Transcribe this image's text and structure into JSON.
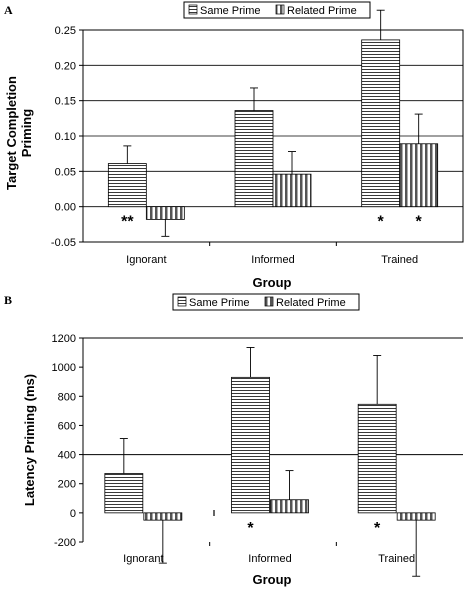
{
  "chart_data": [
    {
      "panel": "A",
      "type": "bar",
      "categories": [
        "Ignorant",
        "Informed",
        "Trained"
      ],
      "series": [
        {
          "name": "Same Prime",
          "values": [
            0.061,
            0.136,
            0.236
          ],
          "errors": [
            0.025,
            0.032,
            0.042
          ],
          "pattern": "horizontal"
        },
        {
          "name": "Related Prime",
          "values": [
            -0.018,
            0.046,
            0.089
          ],
          "errors": [
            0.024,
            0.032,
            0.042
          ],
          "pattern": "vertical"
        }
      ],
      "annotations": [
        {
          "category": 0,
          "series": 0,
          "text": "**"
        },
        {
          "category": 2,
          "series": 0,
          "text": "*"
        },
        {
          "category": 2,
          "series": 1,
          "text": "*"
        }
      ],
      "ylabel_lines": [
        "Target Completion",
        "Priming"
      ],
      "xlabel": "Group",
      "ylim": [
        -0.05,
        0.25
      ],
      "yticks": [
        "-0.05",
        "0.00",
        "0.05",
        "0.10",
        "0.15",
        "0.20",
        "0.25"
      ],
      "ytick_values": [
        -0.05,
        0,
        0.05,
        0.1,
        0.15,
        0.2,
        0.25
      ],
      "gridlines": true,
      "legend_position": "top"
    },
    {
      "panel": "B",
      "type": "bar",
      "categories": [
        "Ignorant",
        "Informed",
        "Trained"
      ],
      "series": [
        {
          "name": "Same Prime",
          "values": [
            270,
            930,
            745
          ],
          "errors": [
            240,
            205,
            335
          ],
          "pattern": "horizontal"
        },
        {
          "name": "Related Prime",
          "values": [
            -50,
            90,
            -50
          ],
          "errors": [
            295,
            200,
            385
          ],
          "pattern": "vertical"
        }
      ],
      "annotations": [
        {
          "category": 1,
          "series": 0,
          "text": "*"
        },
        {
          "category": 2,
          "series": 0,
          "text": "*"
        }
      ],
      "ylabel": "Latency Priming (ms)",
      "xlabel": "Group",
      "ylim": [
        -200,
        1200
      ],
      "yticks": [
        "-200",
        "0",
        "200",
        "400",
        "600",
        "800",
        "1000",
        "1200"
      ],
      "ytick_values": [
        -200,
        0,
        200,
        400,
        600,
        800,
        1000,
        1200
      ],
      "reference_lines": [
        400,
        1200
      ],
      "legend_position": "top"
    }
  ]
}
